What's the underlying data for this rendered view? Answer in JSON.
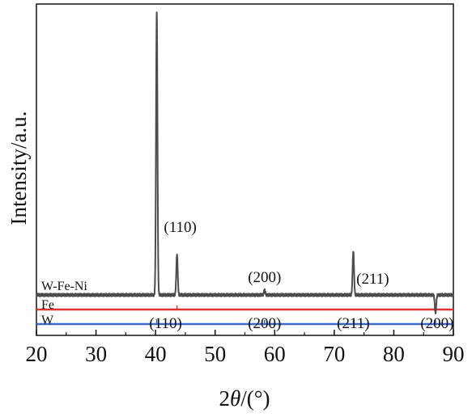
{
  "chart_data": {
    "type": "line",
    "xlabel": "2θ/(°)",
    "xlabel_parts": {
      "prefix": "2",
      "symbol": "θ",
      "suffix": "/(°)"
    },
    "ylabel": "Intensity/a.u.",
    "xlim": [
      20,
      90
    ],
    "xticks": [
      "20",
      "30",
      "40",
      "50",
      "60",
      "70",
      "80",
      "90"
    ],
    "yticks_labeled": false,
    "grid": false,
    "legend": "none",
    "series": [
      {
        "name": "W-Fe-Ni",
        "color": "#4d4d4d",
        "baseline": 0.125,
        "peaks": [
          {
            "two_theta": 40.2,
            "intensity": 1.0
          },
          {
            "two_theta": 43.6,
            "intensity": 0.25
          },
          {
            "two_theta": 58.3,
            "intensity": 0.14
          },
          {
            "two_theta": 73.2,
            "intensity": 0.26
          },
          {
            "two_theta": 87.0,
            "intensity": 0.07
          }
        ]
      },
      {
        "name": "Fe",
        "color": "#e03232",
        "baseline": 0.08,
        "sticks": [
          43.6
        ]
      },
      {
        "name": "W",
        "color": "#3a66c4",
        "baseline": 0.035,
        "sticks": [
          40.2,
          58.3,
          73.2,
          87.0
        ]
      }
    ],
    "annotations_upper": [
      {
        "text": "(110)",
        "x": 40.2
      },
      {
        "text": "(200)",
        "x": 58.3
      },
      {
        "text": "(211)",
        "x": 73.2
      }
    ],
    "annotations_lower": [
      {
        "text": "(110)",
        "x": 43.6
      },
      {
        "text": "(200)",
        "x": 58.3
      },
      {
        "text": "(211)",
        "x": 73.2
      },
      {
        "text": "(200)",
        "x": 87.0
      }
    ]
  }
}
